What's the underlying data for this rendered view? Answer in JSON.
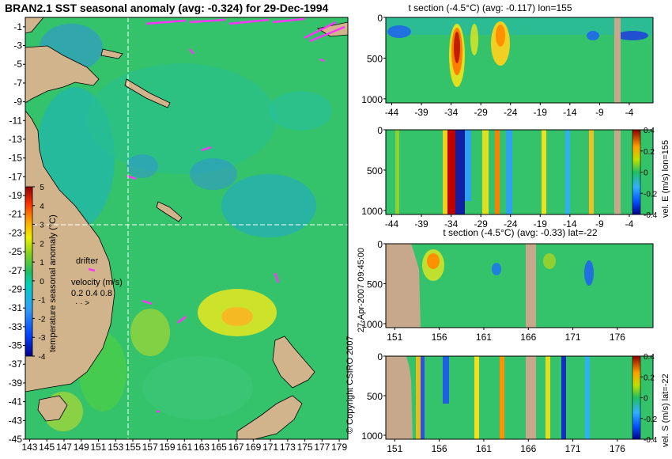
{
  "title": "BRAN2.1 SST seasonal anomaly (avg: -0.324) for 29-Dec-1994",
  "copyright": "© Copyright CSIRO 2007",
  "timestamp": "27-Apr-2007 09:45:00",
  "colors": {
    "land": "#d2b48c",
    "section_land": "#c8a88c",
    "background_sea": "#34c26a",
    "vectors": "#ff33ff",
    "crosshair": "#ffffff"
  },
  "chart_data": [
    {
      "id": "map",
      "type": "heatmap",
      "title": "BRAN2.1 SST seasonal anomaly (avg: -0.324) for 29-Dec-1994",
      "x_ticks": [
        "143",
        "145",
        "147",
        "149",
        "151",
        "153",
        "155",
        "157",
        "159",
        "161",
        "163",
        "165",
        "167",
        "169",
        "171",
        "173",
        "175",
        "177",
        "179"
      ],
      "y_ticks": [
        "-1",
        "-3",
        "-5",
        "-7",
        "-9",
        "-11",
        "-13",
        "-15",
        "-17",
        "-19",
        "-21",
        "-23",
        "-25",
        "-27",
        "-29",
        "-31",
        "-33",
        "-35",
        "-37",
        "-39",
        "-41",
        "-43",
        "-45"
      ],
      "xlim": [
        142.5,
        180
      ],
      "ylim": [
        -45,
        0
      ],
      "crosshair": {
        "lon": 155,
        "lat": -22
      },
      "colorbar": {
        "label": "temperature seasonal anomaly (°C)",
        "ticks": [
          "5",
          "4",
          "3",
          "2",
          "1",
          "0",
          "-1",
          "-2",
          "-3",
          "-4"
        ],
        "range": [
          -4,
          5
        ]
      },
      "legend": {
        "drifter_label": "drifter",
        "velocity_label": "velocity (m/s)",
        "velocity_ticks": "0.2 0.4 0.8"
      }
    },
    {
      "id": "section1",
      "type": "heatmap",
      "title": "t section (-4.5°C) (avg: -0.117) lon=155",
      "x_ticks": [
        "-44",
        "-39",
        "-34",
        "-29",
        "-24",
        "-19",
        "-14",
        "-9",
        "-4"
      ],
      "y_ticks": [
        "0",
        "500",
        "1000"
      ],
      "xlim": [
        -45,
        0
      ],
      "ylim": [
        1050,
        0
      ]
    },
    {
      "id": "section2",
      "type": "heatmap",
      "title": "",
      "x_ticks": [
        "-44",
        "-39",
        "-34",
        "-29",
        "-24",
        "-19",
        "-14",
        "-9",
        "-4"
      ],
      "y_ticks": [
        "0",
        "500",
        "1000"
      ],
      "xlim": [
        -45,
        0
      ],
      "ylim": [
        1050,
        0
      ],
      "colorbar": {
        "label": "vel. E (m/s) lon=155",
        "ticks": [
          "0.4",
          "0.2",
          "0",
          "-0.2",
          "-0.4"
        ],
        "range": [
          -0.4,
          0.4
        ]
      }
    },
    {
      "id": "section3",
      "type": "heatmap",
      "title": "t section (-4.5°C) (avg: -0.33) lat=-22",
      "x_ticks": [
        "151",
        "156",
        "161",
        "166",
        "171",
        "176"
      ],
      "y_ticks": [
        "0",
        "500",
        "1000"
      ],
      "xlim": [
        150,
        180
      ],
      "ylim": [
        1050,
        0
      ]
    },
    {
      "id": "section4",
      "type": "heatmap",
      "title": "",
      "x_ticks": [
        "151",
        "156",
        "161",
        "166",
        "171",
        "176"
      ],
      "y_ticks": [
        "0",
        "500",
        "1000"
      ],
      "xlim": [
        150,
        180
      ],
      "ylim": [
        1050,
        0
      ],
      "colorbar": {
        "label": "vel. S (m/s) lat=-22",
        "ticks": [
          "0.4",
          "0.2",
          "0",
          "-0.2",
          "-0.4"
        ],
        "range": [
          -0.4,
          0.4
        ]
      }
    }
  ]
}
